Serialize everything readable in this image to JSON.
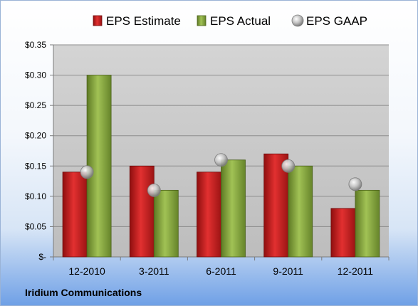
{
  "company": "Iridium Communications",
  "chart_data": {
    "type": "bar",
    "categories": [
      "12-2010",
      "3-2011",
      "6-2011",
      "9-2011",
      "12-2011"
    ],
    "series": [
      {
        "name": "EPS Estimate",
        "kind": "bar",
        "color": "#c81d1d",
        "values": [
          0.14,
          0.15,
          0.14,
          0.17,
          0.08
        ]
      },
      {
        "name": "EPS Actual",
        "kind": "bar",
        "color": "#86a83a",
        "values": [
          0.3,
          0.11,
          0.16,
          0.15,
          0.11
        ]
      },
      {
        "name": "EPS GAAP",
        "kind": "marker",
        "color": "#a8a8a8",
        "values": [
          0.14,
          0.11,
          0.16,
          0.15,
          0.12
        ]
      }
    ],
    "ylim": [
      0,
      0.35
    ],
    "yticks": [
      0,
      0.05,
      0.1,
      0.15,
      0.2,
      0.25,
      0.3,
      0.35
    ],
    "yticklabels": [
      "$-",
      "$0.05",
      "$0.10",
      "$0.15",
      "$0.20",
      "$0.25",
      "$0.30",
      "$0.35"
    ],
    "grid": true,
    "legend_position": "top"
  }
}
